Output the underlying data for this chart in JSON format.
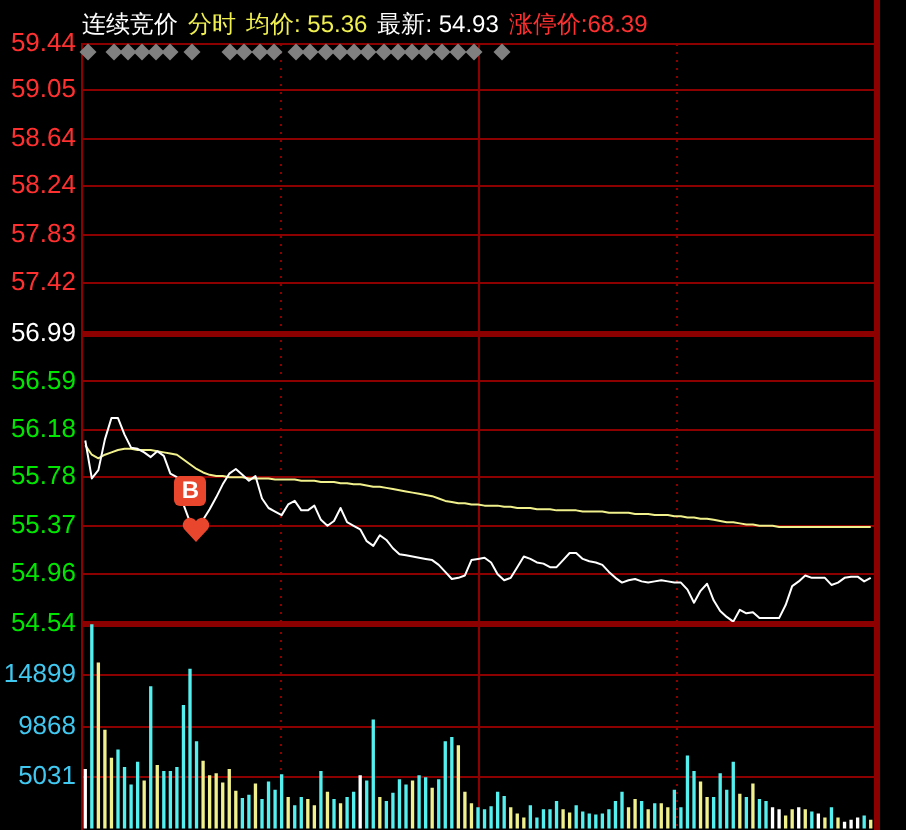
{
  "chart_data": [
    {
      "type": "line",
      "title": "连续竞价",
      "annotations": [
        "分时",
        "均价: 55.36",
        "最新: 54.93",
        "涨停价:68.39",
        {
          "text": "B",
          "y": 55.36
        }
      ],
      "categories": [
        null,
        null,
        null,
        null,
        null,
        null,
        null,
        null,
        null,
        null,
        null,
        null,
        null,
        null,
        null,
        null,
        null,
        null,
        null,
        null,
        null,
        null,
        null,
        null,
        null,
        null,
        null,
        null,
        null,
        null,
        null,
        null,
        null,
        null,
        null,
        null,
        null,
        null,
        null,
        null,
        null,
        null,
        null,
        null,
        null,
        null,
        null,
        null,
        null,
        null,
        null,
        null,
        null,
        null,
        null,
        null,
        null,
        null,
        null,
        null,
        null,
        null,
        null,
        null,
        null,
        null,
        null,
        null,
        null,
        null,
        null,
        null,
        null,
        null,
        null,
        null,
        null,
        null,
        null,
        null,
        null,
        null,
        null,
        null,
        null,
        null,
        null,
        null,
        null,
        null,
        null,
        null,
        null,
        null,
        null,
        null,
        null,
        null,
        null,
        null,
        null,
        null,
        null,
        null,
        null,
        null,
        null,
        null,
        null,
        null,
        null,
        null,
        null,
        null,
        null,
        null,
        null,
        null,
        null,
        null,
        null
      ],
      "series": [
        {
          "color": "#ffffff",
          "values": [
            56.09,
            55.77,
            55.84,
            56.1,
            56.28,
            56.28,
            56.14,
            56.03,
            56.02,
            55.99,
            55.95,
            56.0,
            55.96,
            55.81,
            55.78,
            55.55,
            55.4,
            55.36,
            55.42,
            55.51,
            55.61,
            55.72,
            55.81,
            55.85,
            55.8,
            55.75,
            55.79,
            55.6,
            55.52,
            55.49,
            55.46,
            55.55,
            55.58,
            55.5,
            55.5,
            55.54,
            55.42,
            55.37,
            55.41,
            55.52,
            55.4,
            55.37,
            55.34,
            55.24,
            55.2,
            55.29,
            55.25,
            55.18,
            55.13,
            55.12,
            55.11,
            55.1,
            55.09,
            55.08,
            55.04,
            54.98,
            54.92,
            54.93,
            54.95,
            55.08,
            55.09,
            55.1,
            55.06,
            54.96,
            54.91,
            54.93,
            55.02,
            55.11,
            55.09,
            55.06,
            55.05,
            55.02,
            55.02,
            55.08,
            55.14,
            55.14,
            55.09,
            55.07,
            55.06,
            55.04,
            54.98,
            54.93,
            54.89,
            54.91,
            54.92,
            54.9,
            54.89,
            54.9,
            54.91,
            54.9,
            54.89,
            54.89,
            54.83,
            54.72,
            54.82,
            54.88,
            54.74,
            54.65,
            54.6,
            54.56,
            54.66,
            54.63,
            54.64,
            54.59,
            54.59,
            54.59,
            54.59,
            54.7,
            54.86,
            54.9,
            54.95,
            54.93,
            54.93,
            54.93,
            54.87,
            54.89,
            54.93,
            54.94,
            54.94,
            54.9,
            54.93
          ]
        },
        {
          "color": "#f0f08c",
          "values": [
            56.05,
            55.97,
            55.94,
            55.97,
            55.99,
            56.01,
            56.02,
            56.02,
            56.01,
            56.01,
            56.01,
            56.0,
            55.99,
            55.98,
            55.97,
            55.93,
            55.89,
            55.85,
            55.82,
            55.8,
            55.79,
            55.79,
            55.78,
            55.78,
            55.78,
            55.77,
            55.77,
            55.77,
            55.77,
            55.76,
            55.76,
            55.76,
            55.76,
            55.75,
            55.75,
            55.75,
            55.74,
            55.74,
            55.74,
            55.73,
            55.73,
            55.72,
            55.72,
            55.71,
            55.7,
            55.7,
            55.69,
            55.68,
            55.67,
            55.66,
            55.65,
            55.64,
            55.63,
            55.62,
            55.6,
            55.58,
            55.57,
            55.56,
            55.56,
            55.55,
            55.55,
            55.54,
            55.54,
            55.54,
            55.53,
            55.53,
            55.52,
            55.52,
            55.52,
            55.51,
            55.51,
            55.51,
            55.5,
            55.5,
            55.5,
            55.5,
            55.49,
            55.49,
            55.49,
            55.49,
            55.48,
            55.48,
            55.48,
            55.48,
            55.47,
            55.47,
            55.47,
            55.46,
            55.46,
            55.46,
            55.45,
            55.45,
            55.44,
            55.44,
            55.43,
            55.43,
            55.42,
            55.41,
            55.4,
            55.4,
            55.39,
            55.38,
            55.38,
            55.37,
            55.37,
            55.37,
            55.36,
            55.36,
            55.36,
            55.36,
            55.36,
            55.36,
            55.36,
            55.36,
            55.36,
            55.36,
            55.36,
            55.36,
            55.36,
            55.36,
            55.36
          ]
        }
      ],
      "ylim": [
        54.54,
        59.44
      ],
      "yticks": [
        59.44,
        59.05,
        58.64,
        58.24,
        57.83,
        57.42,
        56.99,
        56.59,
        56.18,
        55.78,
        55.37,
        54.96,
        54.54
      ],
      "ref_lines": [
        {
          "axis": "y",
          "value": 56.99,
          "color": "#8c0000"
        }
      ],
      "grid": true,
      "tick_labels": "y"
    },
    {
      "type": "bar",
      "categories": [
        null,
        null,
        null,
        null,
        null,
        null,
        null,
        null,
        null,
        null,
        null,
        null,
        null,
        null,
        null,
        null,
        null,
        null,
        null,
        null,
        null,
        null,
        null,
        null,
        null,
        null,
        null,
        null,
        null,
        null,
        null,
        null,
        null,
        null,
        null,
        null,
        null,
        null,
        null,
        null,
        null,
        null,
        null,
        null,
        null,
        null,
        null,
        null,
        null,
        null,
        null,
        null,
        null,
        null,
        null,
        null,
        null,
        null,
        null,
        null,
        null,
        null,
        null,
        null,
        null,
        null,
        null,
        null,
        null,
        null,
        null,
        null,
        null,
        null,
        null,
        null,
        null,
        null,
        null,
        null,
        null,
        null,
        null,
        null,
        null,
        null,
        null,
        null,
        null,
        null,
        null,
        null,
        null,
        null,
        null,
        null,
        null,
        null,
        null,
        null,
        null,
        null,
        null,
        null,
        null,
        null,
        null,
        null,
        null,
        null,
        null,
        null,
        null,
        null,
        null,
        null,
        null,
        null,
        null,
        null,
        null
      ],
      "values": [
        5700,
        19700,
        16000,
        9500,
        6800,
        7600,
        5900,
        4200,
        6400,
        4600,
        13700,
        6100,
        5500,
        5500,
        5900,
        11900,
        15400,
        8400,
        6500,
        5100,
        5300,
        4400,
        5700,
        3600,
        2900,
        3200,
        4300,
        2800,
        4500,
        3700,
        5200,
        3000,
        2200,
        3000,
        2800,
        2200,
        5500,
        3500,
        2800,
        2400,
        3000,
        3500,
        5100,
        4600,
        10500,
        3000,
        2600,
        3400,
        4700,
        4200,
        4600,
        5100,
        4900,
        3900,
        4700,
        8400,
        8800,
        8000,
        3500,
        2400,
        2000,
        1800,
        2100,
        3500,
        3100,
        2000,
        1400,
        1000,
        2200,
        1000,
        1800,
        1800,
        2600,
        1800,
        1500,
        2200,
        1600,
        1400,
        1300,
        1400,
        1800,
        2600,
        3500,
        2000,
        2800,
        2600,
        1800,
        2400,
        2400,
        2000,
        3700,
        2000,
        7000,
        5500,
        4500,
        3000,
        3000,
        5300,
        3700,
        6400,
        3300,
        3000,
        4300,
        2800,
        2600,
        2000,
        1800,
        1200,
        1800,
        2000,
        1800,
        1600,
        1400,
        1000,
        2000,
        1000,
        600,
        800,
        1000,
        1200,
        800
      ],
      "colors": [
        "#ffffff",
        "#54f0f0",
        "#f0f08c",
        "#f0f08c",
        "#f0f08c",
        "#54f0f0",
        "#54f0f0",
        "#54f0f0",
        "#54f0f0",
        "#f0f08c",
        "#54f0f0",
        "#f0f08c",
        "#54f0f0",
        "#54f0f0",
        "#54f0f0",
        "#54f0f0",
        "#54f0f0",
        "#54f0f0",
        "#f0f08c",
        "#f0f08c",
        "#f0f08c",
        "#f0f08c",
        "#f0f08c",
        "#f0f08c",
        "#54f0f0",
        "#54f0f0",
        "#f0f08c",
        "#54f0f0",
        "#54f0f0",
        "#54f0f0",
        "#54f0f0",
        "#f0f08c",
        "#54f0f0",
        "#54f0f0",
        "#f0f08c",
        "#f0f08c",
        "#54f0f0",
        "#f0f08c",
        "#54f0f0",
        "#f0f08c",
        "#54f0f0",
        "#54f0f0",
        "#ffffff",
        "#54f0f0",
        "#54f0f0",
        "#f0f08c",
        "#54f0f0",
        "#54f0f0",
        "#54f0f0",
        "#54f0f0",
        "#f0f08c",
        "#54f0f0",
        "#54f0f0",
        "#f0f08c",
        "#54f0f0",
        "#54f0f0",
        "#54f0f0",
        "#f0f08c",
        "#f0f08c",
        "#f0f08c",
        "#54f0f0",
        "#54f0f0",
        "#54f0f0",
        "#54f0f0",
        "#54f0f0",
        "#f0f08c",
        "#f0f08c",
        "#f0f08c",
        "#54f0f0",
        "#54f0f0",
        "#54f0f0",
        "#54f0f0",
        "#54f0f0",
        "#f0f08c",
        "#f0f08c",
        "#54f0f0",
        "#54f0f0",
        "#54f0f0",
        "#54f0f0",
        "#54f0f0",
        "#54f0f0",
        "#54f0f0",
        "#54f0f0",
        "#f0f08c",
        "#f0f08c",
        "#54f0f0",
        "#f0f08c",
        "#54f0f0",
        "#f0f08c",
        "#f0f08c",
        "#54f0f0",
        "#54f0f0",
        "#54f0f0",
        "#54f0f0",
        "#f0f08c",
        "#f0f08c",
        "#54f0f0",
        "#54f0f0",
        "#54f0f0",
        "#54f0f0",
        "#f0f08c",
        "#54f0f0",
        "#f0f08c",
        "#54f0f0",
        "#54f0f0",
        "#ffffff",
        "#ffffff",
        "#f0f08c",
        "#f0f08c",
        "#ffffff",
        "#f0f08c",
        "#54f0f0",
        "#ffffff",
        "#f0f08c",
        "#54f0f0",
        "#f0f08c",
        "#ffffff",
        "#ffffff",
        "#ffffff",
        "#54f0f0",
        "#f0f08c"
      ],
      "ylim": [
        0,
        19800
      ],
      "yticks": [
        5031,
        9868,
        14899
      ],
      "grid": true,
      "tick_labels": "y"
    }
  ]
}
